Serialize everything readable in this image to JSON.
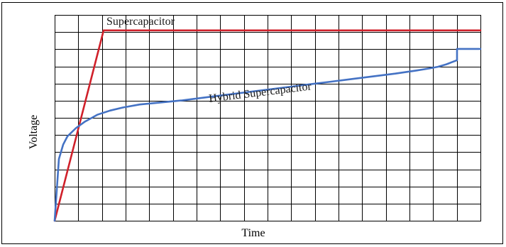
{
  "chart_data": {
    "type": "line",
    "title": "",
    "xlabel": "Time",
    "ylabel": "Voltage",
    "xlim": [
      0,
      100
    ],
    "ylim": [
      0,
      100
    ],
    "grid": true,
    "legend": "none",
    "series": [
      {
        "name": "Supercapacitor",
        "color": "#d0202a",
        "x": [
          0,
          11.5,
          100
        ],
        "y": [
          0,
          92.5,
          92.5
        ]
      },
      {
        "name": "Hybrid Supercapacitor",
        "color": "#4472c4",
        "x": [
          0,
          1,
          2,
          3,
          5,
          7,
          10,
          13,
          16,
          20,
          25,
          30,
          35,
          40,
          45,
          50,
          55,
          60,
          65,
          70,
          75,
          80,
          85,
          88,
          90,
          92,
          94.5,
          94.5,
          100
        ],
        "y": [
          0,
          30,
          37,
          41,
          45,
          48,
          51.5,
          53.5,
          55,
          56.5,
          57.5,
          58.5,
          59.8,
          61.1,
          62.4,
          63.7,
          65,
          66.3,
          67.6,
          68.9,
          70.2,
          71.5,
          73,
          74,
          74.8,
          76,
          78,
          83.5,
          83.5
        ]
      }
    ]
  }
}
